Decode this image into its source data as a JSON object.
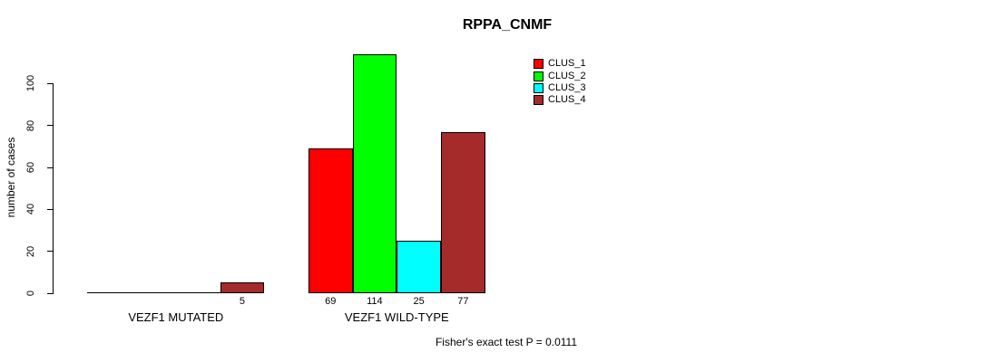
{
  "chart_data": {
    "type": "bar",
    "title": "RPPA_CNMF",
    "ylabel": "number of cases",
    "xlabel": "",
    "yticks": [
      0,
      20,
      40,
      60,
      80,
      100
    ],
    "ylim": [
      0,
      115
    ],
    "grid": false,
    "legend_position": "top-right",
    "background_color": "#FFFFFF",
    "categories": [
      "VEZF1 MUTATED",
      "VEZF1 WILD-TYPE"
    ],
    "series": [
      {
        "name": "CLUS_1",
        "color": "#FF0000",
        "values": [
          0,
          69
        ]
      },
      {
        "name": "CLUS_2",
        "color": "#00FF00",
        "values": [
          0,
          114
        ]
      },
      {
        "name": "CLUS_3",
        "color": "#00FFFF",
        "values": [
          0,
          25
        ]
      },
      {
        "name": "CLUS_4",
        "color": "#A52A2A",
        "values": [
          5,
          77
        ]
      }
    ],
    "bar_value_labels": [
      [
        "",
        "",
        "",
        "5"
      ],
      [
        "69",
        "114",
        "25",
        "77"
      ]
    ],
    "footnote": "Fisher's exact test P = 0.0111"
  }
}
